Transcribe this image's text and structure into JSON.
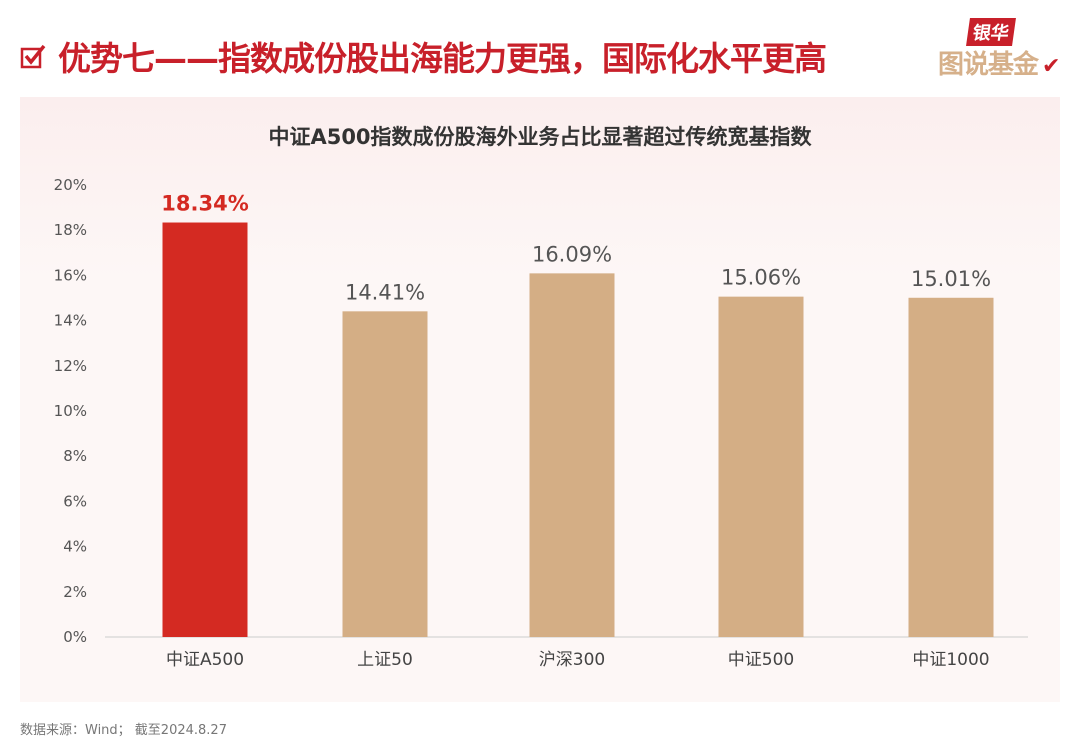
{
  "header": {
    "title": "优势七——指数成份股出海能力更强，国际化水平更高",
    "check_icon": "checkbox-check-icon"
  },
  "logo": {
    "top": "银华",
    "bottom": "图说基金"
  },
  "footer": {
    "source": "数据来源：Wind；  截至2024.8.27"
  },
  "colors": {
    "highlight": "#d42a22",
    "normal": "#d4ae85",
    "title": "#c8202a"
  },
  "chart_data": {
    "type": "bar",
    "title": "中证A500指数成份股海外业务占比显著超过传统宽基指数",
    "categories": [
      "中证A500",
      "上证50",
      "沪深300",
      "中证500",
      "中证1000"
    ],
    "values": [
      18.34,
      14.41,
      16.09,
      15.06,
      15.01
    ],
    "data_labels": [
      "18.34%",
      "14.41%",
      "16.09%",
      "15.06%",
      "15.01%"
    ],
    "highlight_index": 0,
    "yticks": [
      "0%",
      "2%",
      "4%",
      "6%",
      "8%",
      "10%",
      "12%",
      "14%",
      "16%",
      "18%",
      "20%"
    ],
    "ylim": [
      0,
      20
    ],
    "xlabel": "",
    "ylabel": "",
    "grid": false,
    "legend": "none"
  }
}
